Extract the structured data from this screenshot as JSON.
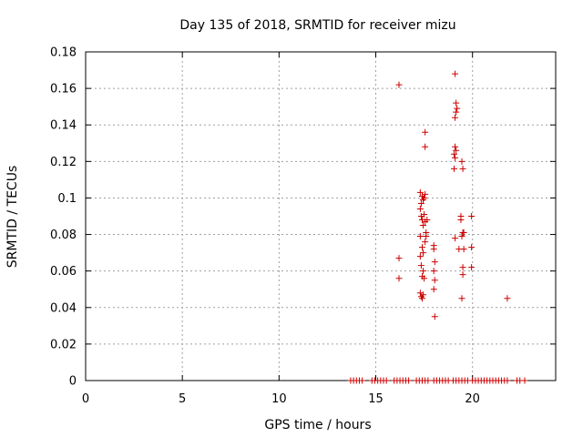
{
  "chart_data": {
    "type": "scatter",
    "title": "Day 135 of 2018, SRMTID for receiver mizu",
    "xlabel": "GPS time / hours",
    "ylabel": "SRMTID / TECUs",
    "xlim": [
      0,
      24.3
    ],
    "ylim": [
      0,
      0.18
    ],
    "x_ticks": [
      0,
      5,
      10,
      15,
      20
    ],
    "x_tick_labels": [
      "0",
      "5",
      "10",
      "15",
      "20"
    ],
    "y_ticks": [
      0,
      0.02,
      0.04,
      0.06,
      0.08,
      0.1,
      0.12,
      0.14,
      0.16,
      0.18
    ],
    "y_tick_labels": [
      "0",
      "0.02",
      "0.04",
      "0.06",
      "0.08",
      "0.1",
      "0.12",
      "0.14",
      "0.16",
      "0.18"
    ],
    "grid": true,
    "marker": "+",
    "color": "#cc0000",
    "series": [
      {
        "name": "SRMTID",
        "points": [
          [
            16.2,
            0.162
          ],
          [
            16.2,
            0.067
          ],
          [
            16.2,
            0.056
          ],
          [
            17.3,
            0.103
          ],
          [
            17.35,
            0.097
          ],
          [
            17.4,
            0.101
          ],
          [
            17.45,
            0.099
          ],
          [
            17.5,
            0.1
          ],
          [
            17.55,
            0.102
          ],
          [
            17.3,
            0.094
          ],
          [
            17.35,
            0.09
          ],
          [
            17.4,
            0.088
          ],
          [
            17.45,
            0.085
          ],
          [
            17.5,
            0.091
          ],
          [
            17.55,
            0.087
          ],
          [
            17.3,
            0.079
          ],
          [
            17.4,
            0.073
          ],
          [
            17.45,
            0.07
          ],
          [
            17.55,
            0.076
          ],
          [
            17.3,
            0.068
          ],
          [
            17.35,
            0.063
          ],
          [
            17.45,
            0.06
          ],
          [
            17.5,
            0.056
          ],
          [
            17.4,
            0.057
          ],
          [
            17.3,
            0.048
          ],
          [
            17.35,
            0.046
          ],
          [
            17.4,
            0.045
          ],
          [
            17.45,
            0.047
          ],
          [
            17.55,
            0.136
          ],
          [
            17.55,
            0.128
          ],
          [
            17.6,
            0.081
          ],
          [
            17.6,
            0.079
          ],
          [
            17.65,
            0.088
          ],
          [
            18.0,
            0.074
          ],
          [
            18.0,
            0.072
          ],
          [
            18.05,
            0.065
          ],
          [
            18.0,
            0.06
          ],
          [
            18.05,
            0.055
          ],
          [
            18.0,
            0.05
          ],
          [
            18.05,
            0.035
          ],
          [
            19.1,
            0.168
          ],
          [
            19.15,
            0.152
          ],
          [
            19.2,
            0.149
          ],
          [
            19.15,
            0.147
          ],
          [
            19.1,
            0.144
          ],
          [
            19.1,
            0.128
          ],
          [
            19.15,
            0.126
          ],
          [
            19.05,
            0.124
          ],
          [
            19.1,
            0.122
          ],
          [
            19.45,
            0.12
          ],
          [
            19.5,
            0.116
          ],
          [
            19.05,
            0.116
          ],
          [
            19.4,
            0.09
          ],
          [
            19.4,
            0.088
          ],
          [
            19.5,
            0.081
          ],
          [
            19.45,
            0.079
          ],
          [
            19.55,
            0.081
          ],
          [
            19.1,
            0.078
          ],
          [
            19.3,
            0.072
          ],
          [
            19.55,
            0.072
          ],
          [
            19.5,
            0.062
          ],
          [
            19.5,
            0.058
          ],
          [
            19.45,
            0.045
          ],
          [
            19.95,
            0.09
          ],
          [
            19.95,
            0.073
          ],
          [
            19.95,
            0.062
          ],
          [
            21.8,
            0.045
          ],
          [
            13.7,
            0.0
          ],
          [
            13.85,
            0.0
          ],
          [
            14.0,
            0.0
          ],
          [
            14.15,
            0.0
          ],
          [
            14.3,
            0.0
          ],
          [
            14.8,
            0.0
          ],
          [
            14.95,
            0.0
          ],
          [
            15.1,
            0.0
          ],
          [
            15.25,
            0.0
          ],
          [
            15.4,
            0.0
          ],
          [
            15.55,
            0.0
          ],
          [
            15.95,
            0.0
          ],
          [
            16.1,
            0.0
          ],
          [
            16.25,
            0.0
          ],
          [
            16.4,
            0.0
          ],
          [
            16.55,
            0.0
          ],
          [
            16.7,
            0.0
          ],
          [
            17.1,
            0.0
          ],
          [
            17.25,
            0.0
          ],
          [
            17.4,
            0.0
          ],
          [
            17.55,
            0.0
          ],
          [
            17.7,
            0.0
          ],
          [
            18.0,
            0.0
          ],
          [
            18.15,
            0.0
          ],
          [
            18.3,
            0.0
          ],
          [
            18.45,
            0.0
          ],
          [
            18.6,
            0.0
          ],
          [
            18.75,
            0.0
          ],
          [
            19.0,
            0.0
          ],
          [
            19.15,
            0.0
          ],
          [
            19.3,
            0.0
          ],
          [
            19.45,
            0.0
          ],
          [
            19.6,
            0.0
          ],
          [
            19.75,
            0.0
          ],
          [
            20.0,
            0.0
          ],
          [
            20.15,
            0.0
          ],
          [
            20.3,
            0.0
          ],
          [
            20.45,
            0.0
          ],
          [
            20.6,
            0.0
          ],
          [
            20.75,
            0.0
          ],
          [
            20.9,
            0.0
          ],
          [
            21.05,
            0.0
          ],
          [
            21.2,
            0.0
          ],
          [
            21.35,
            0.0
          ],
          [
            21.5,
            0.0
          ],
          [
            21.65,
            0.0
          ],
          [
            21.8,
            0.0
          ],
          [
            22.3,
            0.0
          ],
          [
            22.45,
            0.0
          ],
          [
            22.7,
            0.0
          ]
        ]
      }
    ]
  }
}
